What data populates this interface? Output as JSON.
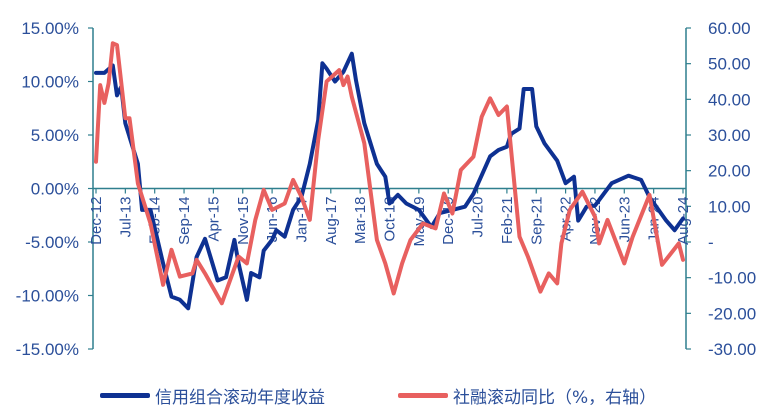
{
  "chart_data": {
    "type": "line",
    "title": "",
    "left_axis": {
      "ylim": [
        -15,
        15
      ],
      "ticks": [
        "15.00%",
        "10.00%",
        "5.00%",
        "0.00%",
        "-5.00%",
        "-10.00%",
        "-15.00%"
      ]
    },
    "right_axis": {
      "ylim": [
        -30,
        60
      ],
      "ticks": [
        "60.00",
        "50.00",
        "40.00",
        "30.00",
        "20.00",
        "10.00",
        "-",
        "-10.00",
        "-20.00",
        "-30.00"
      ]
    },
    "x_ticks": [
      "Dec-12",
      "Jul-13",
      "Feb-14",
      "Sep-14",
      "Apr-15",
      "Nov-15",
      "Jun-16",
      "Jan-17",
      "Aug-17",
      "Mar-18",
      "Oct-18",
      "May-19",
      "Dec-19",
      "Jul-20",
      "Feb-21",
      "Sep-21",
      "Apr-22",
      "Nov-22",
      "Jun-23",
      "Jan-24",
      "Aug-24"
    ],
    "xlim": [
      "2012-12",
      "2024-08"
    ],
    "grid": false,
    "legend_placement": "bottom",
    "series": [
      {
        "name": "信用组合滚动年度收益",
        "axis": "left",
        "color": "#0e3192",
        "x": [
          "2012-12",
          "2013-02",
          "2013-04",
          "2013-05",
          "2013-06",
          "2013-07",
          "2013-10",
          "2013-11",
          "2014-01",
          "2014-04",
          "2014-06",
          "2014-08",
          "2014-10",
          "2014-12",
          "2015-02",
          "2015-05",
          "2015-07",
          "2015-09",
          "2015-10",
          "2015-12",
          "2016-01",
          "2016-03",
          "2016-04",
          "2016-06",
          "2016-07",
          "2016-09",
          "2016-11",
          "2017-01",
          "2017-03",
          "2017-05",
          "2017-06",
          "2017-07",
          "2017-09",
          "2017-11",
          "2018-01",
          "2018-02",
          "2018-04",
          "2018-07",
          "2018-09",
          "2018-10",
          "2018-12",
          "2019-02",
          "2019-05",
          "2019-08",
          "2019-10",
          "2020-01",
          "2020-04",
          "2020-06",
          "2020-10",
          "2020-12",
          "2021-02",
          "2021-03",
          "2021-05",
          "2021-06",
          "2021-08",
          "2021-09",
          "2021-11",
          "2022-02",
          "2022-04",
          "2022-06",
          "2022-07",
          "2022-09",
          "2022-11",
          "2023-03",
          "2023-07",
          "2023-10",
          "2023-12",
          "2024-04",
          "2024-06",
          "2024-08"
        ],
        "values": [
          10.8,
          10.8,
          11.5,
          8.7,
          9.5,
          6.1,
          2.3,
          -2.0,
          -2.0,
          -7.0,
          -10.1,
          -10.4,
          -11.2,
          -6.4,
          -4.7,
          -8.6,
          -8.3,
          -4.8,
          -7.0,
          -10.4,
          -7.9,
          -8.3,
          -5.8,
          -4.8,
          -3.9,
          -4.5,
          -2.0,
          -0.8,
          2.3,
          6.4,
          11.7,
          11.2,
          10.0,
          10.9,
          12.6,
          10.1,
          6.1,
          2.3,
          1.1,
          -1.4,
          -0.6,
          -1.4,
          -2.0,
          -3.6,
          -2.3,
          -2.0,
          -1.7,
          -0.5,
          3.0,
          3.6,
          3.9,
          5.1,
          5.6,
          9.3,
          9.3,
          5.8,
          4.2,
          2.6,
          0.5,
          1.1,
          -3.0,
          -1.7,
          -1.6,
          0.5,
          1.2,
          0.8,
          -0.8,
          -3.0,
          -3.9,
          -2.8
        ]
      },
      {
        "name": "社融滚动同比（%，右轴）",
        "axis": "right",
        "color": "#e8605f",
        "x": [
          "2012-12",
          "2013-01",
          "2013-02",
          "2013-03",
          "2013-04",
          "2013-05",
          "2013-07",
          "2013-08",
          "2013-10",
          "2014-01",
          "2014-04",
          "2014-06",
          "2014-08",
          "2014-11",
          "2014-12",
          "2015-02",
          "2015-06",
          "2015-10",
          "2015-12",
          "2016-02",
          "2016-04",
          "2016-06",
          "2016-09",
          "2016-11",
          "2017-01",
          "2017-03",
          "2017-05",
          "2017-07",
          "2017-10",
          "2017-11",
          "2017-12",
          "2018-01",
          "2018-04",
          "2018-07",
          "2018-09",
          "2018-11",
          "2019-01",
          "2019-03",
          "2019-06",
          "2019-09",
          "2019-11",
          "2020-01",
          "2020-03",
          "2020-06",
          "2020-08",
          "2020-10",
          "2020-12",
          "2021-02",
          "2021-05",
          "2021-07",
          "2021-10",
          "2021-12",
          "2022-02",
          "2022-03",
          "2022-05",
          "2022-08",
          "2022-11",
          "2022-12",
          "2023-02",
          "2023-06",
          "2023-08",
          "2023-12",
          "2024-03",
          "2024-07",
          "2024-08"
        ],
        "values": [
          22.5,
          44,
          39,
          44.5,
          55.7,
          55.2,
          34.7,
          34.7,
          16.4,
          5.2,
          -12,
          -2.2,
          -9.7,
          -8.8,
          -5,
          -8.8,
          -17.2,
          -4.1,
          -6,
          6.2,
          14.6,
          9,
          10.8,
          17.4,
          12.7,
          6.2,
          28.6,
          45,
          48.2,
          44,
          46.4,
          40.7,
          27.7,
          0.6,
          -6,
          -14.4,
          -6,
          0.6,
          5.2,
          3.8,
          13.6,
          8,
          20.2,
          23.9,
          35.1,
          40.3,
          35.6,
          38,
          1.5,
          -4.1,
          -13.9,
          -8.8,
          -11.6,
          -0.4,
          9,
          14.1,
          7.1,
          -0.4,
          6.2,
          -6,
          1.5,
          13.2,
          -6.4,
          -0.4,
          -5
        ]
      }
    ]
  },
  "colors": {
    "axis": "#2f7f8e",
    "tick_text": "#2b4f9a"
  }
}
